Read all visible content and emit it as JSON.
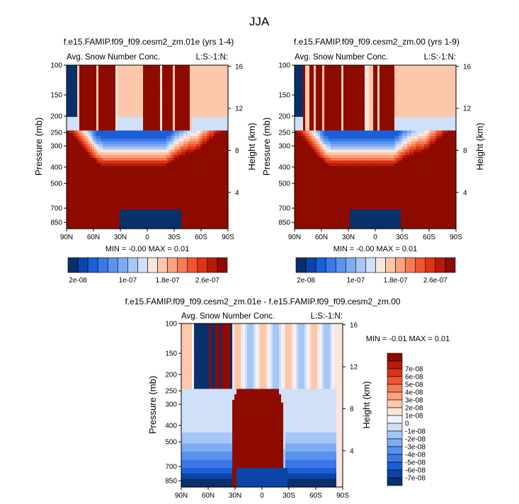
{
  "figure": {
    "title": "JJA"
  },
  "chart_data": [
    {
      "type": "heatmap",
      "title": "f.e15.FAMIP.f09_f09.cesm2_zm.01e (yrs 1-4)",
      "left_label": "Avg. Snow Number Conc.",
      "right_label": "L:S:-1:N:",
      "xlabel": "",
      "ylabel": "Pressure (mb)",
      "ylabel_right": "Height (km)",
      "x_ticks": [
        "90N",
        "60N",
        "30N",
        "0",
        "30S",
        "60S",
        "90S"
      ],
      "x_values": [
        90,
        60,
        30,
        0,
        -30,
        -60,
        -90
      ],
      "xlim": [
        90,
        -90
      ],
      "y_ticks": [
        "100",
        "150",
        "200",
        "250",
        "300",
        "400",
        "500",
        "700",
        "850"
      ],
      "y_values": [
        100,
        150,
        200,
        250,
        300,
        400,
        500,
        700,
        850
      ],
      "ylim": [
        100,
        925
      ],
      "yscale": "log",
      "height_ticks": [
        "16",
        "12",
        "8",
        "4"
      ],
      "height_values": [
        16,
        12,
        8,
        4
      ],
      "stats": "MIN = -0.00   MAX =  0.01",
      "variant": "a"
    },
    {
      "type": "heatmap",
      "title": "f.e15.FAMIP.f09_f09.cesm2_zm.00 (yrs 1-9)",
      "left_label": "Avg. Snow Number Conc.",
      "right_label": "L:S:-1:N:",
      "xlabel": "",
      "ylabel": "Pressure (mb)",
      "ylabel_right": "Height (km)",
      "x_ticks": [
        "90N",
        "60N",
        "30N",
        "0",
        "30S",
        "60S",
        "90S"
      ],
      "x_values": [
        90,
        60,
        30,
        0,
        -30,
        -60,
        -90
      ],
      "xlim": [
        90,
        -90
      ],
      "y_ticks": [
        "100",
        "150",
        "200",
        "250",
        "300",
        "400",
        "500",
        "700",
        "850"
      ],
      "y_values": [
        100,
        150,
        200,
        250,
        300,
        400,
        500,
        700,
        850
      ],
      "ylim": [
        100,
        925
      ],
      "yscale": "log",
      "height_ticks": [
        "16",
        "12",
        "8",
        "4"
      ],
      "height_values": [
        16,
        12,
        8,
        4
      ],
      "stats": "MIN = -0.00   MAX =  0.01",
      "variant": "b"
    },
    {
      "type": "heatmap",
      "title": "f.e15.FAMIP.f09_f09.cesm2_zm.01e - f.e15.FAMIP.f09_f09.cesm2_zm.00",
      "left_label": "Avg. Snow Number Conc.",
      "right_label": "L:S:-1:N:",
      "xlabel": "",
      "ylabel": "Pressure (mb)",
      "ylabel_right": "Height (km)",
      "x_ticks": [
        "90N",
        "60N",
        "30N",
        "0",
        "30S",
        "60S",
        "90S"
      ],
      "x_values": [
        90,
        60,
        30,
        0,
        -30,
        -60,
        -90
      ],
      "xlim": [
        90,
        -90
      ],
      "y_ticks": [
        "100",
        "150",
        "200",
        "250",
        "300",
        "400",
        "500",
        "700",
        "850"
      ],
      "y_values": [
        100,
        150,
        200,
        250,
        300,
        400,
        500,
        700,
        850
      ],
      "ylim": [
        100,
        925
      ],
      "yscale": "log",
      "height_ticks": [
        "16",
        "12",
        "8",
        "4"
      ],
      "height_values": [
        16,
        12,
        8,
        4
      ],
      "stats": "MIN = -0.01   MAX =  0.01",
      "variant": "diff"
    }
  ],
  "colorbar_top": {
    "colors": [
      "#08306b",
      "#0c44a8",
      "#1a5fd6",
      "#3a78e8",
      "#5a93ef",
      "#7eacf2",
      "#a6c7f5",
      "#cfe0f8",
      "#fbe6da",
      "#fdc7ab",
      "#fca27d",
      "#f77b55",
      "#ee5530",
      "#dc3414",
      "#b81b08",
      "#8e0b00"
    ],
    "labels": [
      "2e-08",
      "1e-07",
      "1.8e-07",
      "2.6e-07"
    ],
    "label_bins": [
      1,
      6,
      10,
      14
    ]
  },
  "colorbar_diff": {
    "colors": [
      "#08306b",
      "#0c44a8",
      "#1a5fd6",
      "#3a78e8",
      "#5a93ef",
      "#7eacf2",
      "#a6c7f5",
      "#cfe0f8",
      "#eef4fd",
      "#fbe6da",
      "#fdc7ab",
      "#fca27d",
      "#f77b55",
      "#ee5530",
      "#dc3414",
      "#b81b08",
      "#8e0b00"
    ],
    "labels": [
      "-7e-08",
      "-6e-08",
      "-5e-08",
      "-4e-08",
      "-3e-08",
      "-2e-08",
      "-1e-08",
      "0",
      "1e-08",
      "2e-08",
      "3e-08",
      "4e-08",
      "5e-08",
      "6e-08",
      "7e-08"
    ]
  }
}
